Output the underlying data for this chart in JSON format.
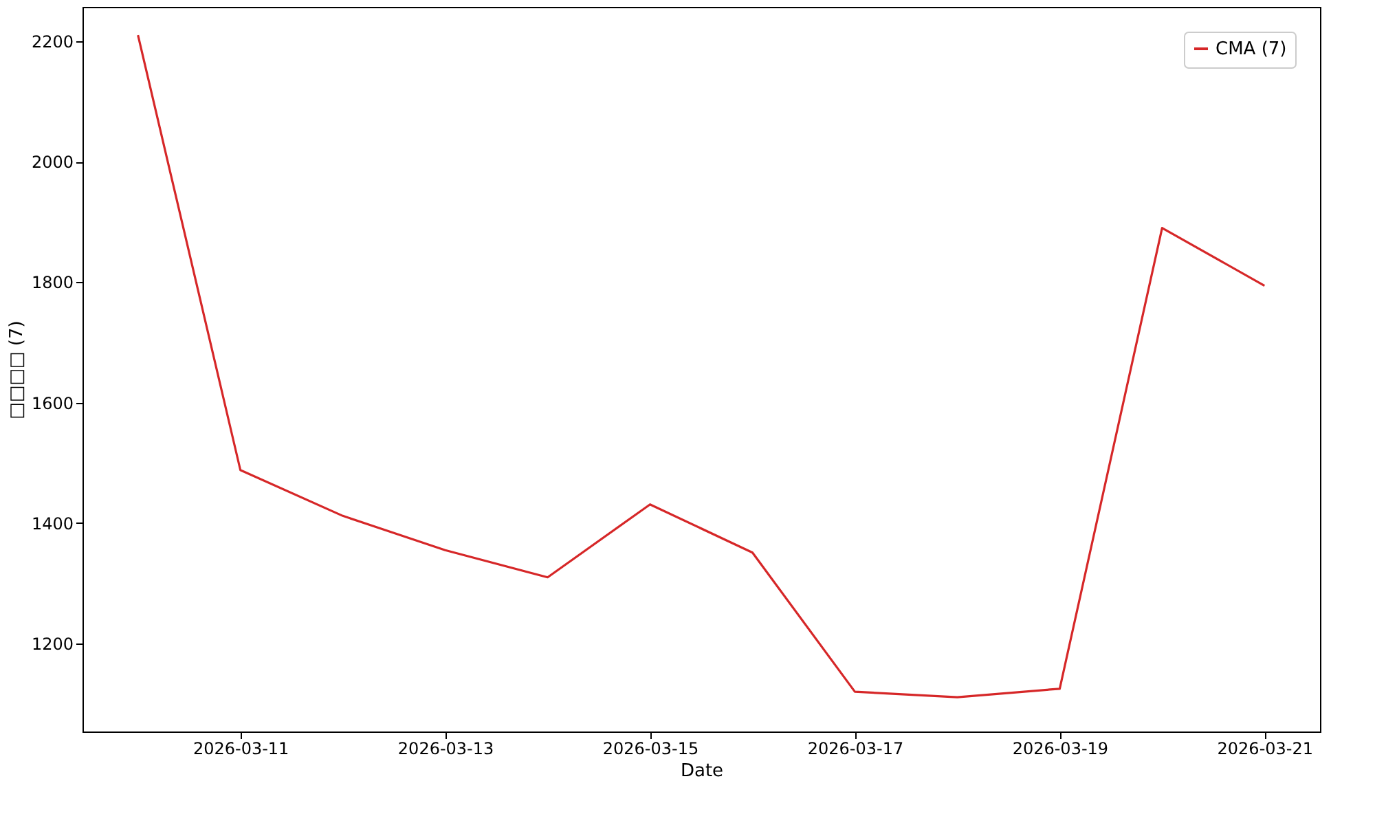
{
  "chart_data": {
    "type": "line",
    "xlabel": "Date",
    "ylabel": "□□□□ (7)",
    "x": [
      "2026-03-10",
      "2026-03-11",
      "2026-03-12",
      "2026-03-13",
      "2026-03-14",
      "2026-03-15",
      "2026-03-16",
      "2026-03-17",
      "2026-03-18",
      "2026-03-19",
      "2026-03-20",
      "2026-03-21"
    ],
    "series": [
      {
        "name": "CMA (7)",
        "color": "#d62728",
        "values": [
          2210,
          1488,
          1412,
          1355,
          1310,
          1431,
          1351,
          1120,
          1111,
          1125,
          1890,
          1794
        ]
      }
    ],
    "xlim": [
      "2026-03-09T11:00",
      "2026-03-21T13:00"
    ],
    "xticks": [
      "2026-03-11",
      "2026-03-13",
      "2026-03-15",
      "2026-03-17",
      "2026-03-19",
      "2026-03-21"
    ],
    "ylim": [
      1054,
      2257
    ],
    "yticks": [
      1200,
      1400,
      1600,
      1800,
      2000,
      2200
    ],
    "grid": false,
    "legend": "top right",
    "line_style": "solid",
    "marker": "none"
  }
}
